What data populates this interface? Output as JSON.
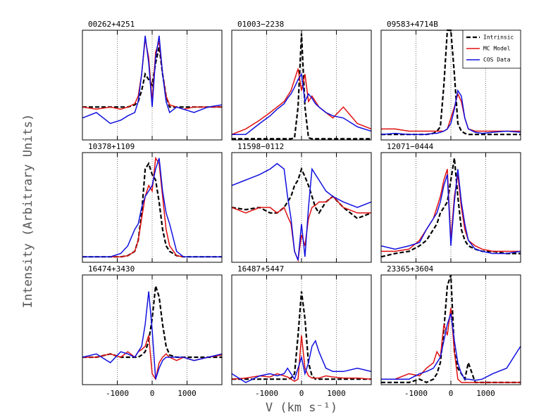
{
  "x_label": "V (km s⁻¹)",
  "y_label": "Intensity (Arbitrary Units)",
  "chart_data": [
    {
      "type": "line",
      "title": "00262+4251",
      "xlim": [
        -2000,
        2000
      ],
      "ylim": [
        0,
        1
      ],
      "xticks": [
        -1000,
        0,
        1000
      ],
      "grid": true,
      "x": [
        -2000,
        -1600,
        -1200,
        -900,
        -700,
        -500,
        -400,
        -300,
        -200,
        -100,
        0,
        100,
        200,
        300,
        400,
        500,
        700,
        900,
        1200,
        1600,
        2000
      ],
      "series": [
        {
          "color": "#000000",
          "dash": true,
          "values": [
            0.3,
            0.3,
            0.3,
            0.3,
            0.3,
            0.32,
            0.35,
            0.45,
            0.6,
            0.55,
            0.5,
            0.7,
            0.85,
            0.6,
            0.4,
            0.3,
            0.3,
            0.3,
            0.3,
            0.3,
            0.3
          ]
        },
        {
          "color": "#e01010",
          "values": [
            0.3,
            0.28,
            0.3,
            0.28,
            0.3,
            0.33,
            0.4,
            0.6,
            0.92,
            0.75,
            0.35,
            0.8,
            0.9,
            0.6,
            0.4,
            0.32,
            0.3,
            0.28,
            0.3,
            0.3,
            0.3
          ]
        },
        {
          "color": "#1010e0",
          "values": [
            0.2,
            0.25,
            0.15,
            0.18,
            0.22,
            0.25,
            0.35,
            0.6,
            0.95,
            0.7,
            0.3,
            0.75,
            0.95,
            0.6,
            0.35,
            0.25,
            0.3,
            0.28,
            0.25,
            0.3,
            0.32
          ]
        }
      ]
    },
    {
      "type": "line",
      "title": "01003−2238",
      "xlim": [
        -2000,
        2000
      ],
      "ylim": [
        0,
        1
      ],
      "xticks": [
        -1000,
        0,
        1000
      ],
      "grid": true,
      "x": [
        -2000,
        -1600,
        -1200,
        -900,
        -700,
        -500,
        -400,
        -300,
        -200,
        -100,
        0,
        100,
        200,
        300,
        400,
        500,
        700,
        900,
        1200,
        1600,
        2000
      ],
      "series": [
        {
          "color": "#000000",
          "dash": true,
          "values": [
            0.01,
            0.01,
            0.01,
            0.01,
            0.01,
            0.01,
            0.01,
            0.01,
            0.02,
            0.3,
            0.97,
            0.3,
            0.02,
            0.01,
            0.01,
            0.01,
            0.01,
            0.01,
            0.01,
            0.01,
            0.01
          ]
        },
        {
          "color": "#e01010",
          "values": [
            0.05,
            0.1,
            0.18,
            0.25,
            0.3,
            0.35,
            0.4,
            0.45,
            0.55,
            0.65,
            0.45,
            0.6,
            0.35,
            0.4,
            0.35,
            0.3,
            0.25,
            0.2,
            0.3,
            0.15,
            0.1
          ]
        },
        {
          "color": "#1010e0",
          "values": [
            0.05,
            0.05,
            0.15,
            0.22,
            0.28,
            0.33,
            0.38,
            0.42,
            0.48,
            0.55,
            0.6,
            0.35,
            0.42,
            0.38,
            0.33,
            0.3,
            0.25,
            0.22,
            0.2,
            0.12,
            0.08
          ]
        }
      ]
    },
    {
      "type": "line",
      "title": "09583+4714B",
      "xlim": [
        -2000,
        2000
      ],
      "ylim": [
        0,
        1
      ],
      "xticks": [
        -1000,
        0,
        1000
      ],
      "grid": true,
      "legend": "upper right",
      "x": [
        -2000,
        -1600,
        -1200,
        -900,
        -700,
        -500,
        -400,
        -300,
        -200,
        -100,
        0,
        100,
        200,
        300,
        400,
        500,
        700,
        900,
        1200,
        1600,
        2000
      ],
      "series": [
        {
          "name": "Intrinsic",
          "color": "#000000",
          "dash": true,
          "values": [
            0.05,
            0.05,
            0.05,
            0.05,
            0.05,
            0.06,
            0.08,
            0.12,
            0.5,
            1.0,
            1.0,
            0.6,
            0.15,
            0.08,
            0.06,
            0.05,
            0.05,
            0.05,
            0.05,
            0.05,
            0.05
          ]
        },
        {
          "name": "MC Model",
          "color": "#e01010",
          "values": [
            0.1,
            0.1,
            0.08,
            0.08,
            0.08,
            0.08,
            0.08,
            0.08,
            0.08,
            0.1,
            0.2,
            0.3,
            0.42,
            0.35,
            0.2,
            0.1,
            0.08,
            0.08,
            0.08,
            0.08,
            0.08
          ]
        },
        {
          "name": "COS Data",
          "color": "#1010e0",
          "values": [
            0.05,
            0.06,
            0.05,
            0.05,
            0.05,
            0.06,
            0.06,
            0.07,
            0.08,
            0.1,
            0.15,
            0.28,
            0.45,
            0.4,
            0.2,
            0.1,
            0.07,
            0.06,
            0.07,
            0.08,
            0.07
          ]
        }
      ]
    },
    {
      "type": "line",
      "title": "10378+1109",
      "xlim": [
        -2000,
        2000
      ],
      "ylim": [
        0,
        1
      ],
      "xticks": [
        -1000,
        0,
        1000
      ],
      "grid": true,
      "x": [
        -2000,
        -1600,
        -1200,
        -900,
        -700,
        -500,
        -400,
        -300,
        -200,
        -100,
        0,
        100,
        200,
        300,
        400,
        500,
        700,
        900,
        1200,
        1600,
        2000
      ],
      "series": [
        {
          "color": "#000000",
          "dash": true,
          "values": [
            0.05,
            0.05,
            0.05,
            0.05,
            0.06,
            0.1,
            0.2,
            0.45,
            0.85,
            0.9,
            0.8,
            0.75,
            0.55,
            0.3,
            0.15,
            0.1,
            0.06,
            0.05,
            0.05,
            0.05,
            0.05
          ]
        },
        {
          "color": "#e01010",
          "values": [
            0.05,
            0.05,
            0.05,
            0.05,
            0.06,
            0.1,
            0.2,
            0.4,
            0.6,
            0.7,
            0.65,
            0.95,
            0.9,
            0.6,
            0.3,
            0.15,
            0.06,
            0.05,
            0.05,
            0.05,
            0.05
          ]
        },
        {
          "color": "#1010e0",
          "values": [
            0.05,
            0.05,
            0.05,
            0.08,
            0.15,
            0.3,
            0.35,
            0.5,
            0.6,
            0.65,
            0.7,
            0.85,
            0.95,
            0.65,
            0.45,
            0.35,
            0.1,
            0.05,
            0.05,
            0.05,
            0.05
          ]
        }
      ]
    },
    {
      "type": "line",
      "title": "11598−0112",
      "xlim": [
        -2000,
        2000
      ],
      "ylim": [
        0,
        1
      ],
      "xticks": [
        -1000,
        0,
        1000
      ],
      "grid": true,
      "x": [
        -2000,
        -1600,
        -1200,
        -900,
        -700,
        -500,
        -400,
        -300,
        -200,
        -100,
        0,
        100,
        200,
        300,
        400,
        500,
        700,
        900,
        1200,
        1600,
        2000
      ],
      "series": [
        {
          "color": "#000000",
          "dash": true,
          "values": [
            0.5,
            0.48,
            0.5,
            0.45,
            0.45,
            0.5,
            0.55,
            0.6,
            0.7,
            0.75,
            0.85,
            0.78,
            0.7,
            0.6,
            0.5,
            0.45,
            0.55,
            0.6,
            0.5,
            0.4,
            0.45
          ]
        },
        {
          "color": "#e01010",
          "values": [
            0.5,
            0.45,
            0.5,
            0.5,
            0.45,
            0.5,
            0.42,
            0.35,
            0.1,
            0.02,
            0.25,
            0.15,
            0.4,
            0.5,
            0.52,
            0.55,
            0.55,
            0.6,
            0.5,
            0.45,
            0.45
          ]
        },
        {
          "color": "#1010e0",
          "values": [
            0.7,
            0.75,
            0.8,
            0.85,
            0.9,
            0.85,
            0.6,
            0.4,
            0.1,
            0.02,
            0.35,
            0.05,
            0.5,
            0.85,
            0.8,
            0.75,
            0.65,
            0.6,
            0.55,
            0.5,
            0.55
          ]
        }
      ]
    },
    {
      "type": "line",
      "title": "12071−0444",
      "xlim": [
        -2000,
        2000
      ],
      "ylim": [
        0,
        1
      ],
      "xticks": [
        -1000,
        0,
        1000
      ],
      "grid": true,
      "x": [
        -2000,
        -1600,
        -1200,
        -900,
        -700,
        -500,
        -400,
        -300,
        -200,
        -100,
        0,
        100,
        200,
        300,
        400,
        500,
        700,
        900,
        1200,
        1600,
        2000
      ],
      "series": [
        {
          "color": "#000000",
          "dash": true,
          "values": [
            0.05,
            0.08,
            0.1,
            0.15,
            0.2,
            0.3,
            0.35,
            0.45,
            0.5,
            0.55,
            0.75,
            0.95,
            0.6,
            0.3,
            0.2,
            0.15,
            0.12,
            0.1,
            0.1,
            0.08,
            0.08
          ]
        },
        {
          "color": "#e01010",
          "values": [
            0.1,
            0.1,
            0.12,
            0.2,
            0.3,
            0.4,
            0.5,
            0.6,
            0.75,
            0.85,
            0.2,
            0.6,
            0.8,
            0.5,
            0.3,
            0.2,
            0.15,
            0.12,
            0.1,
            0.1,
            0.1
          ]
        },
        {
          "color": "#1010e0",
          "values": [
            0.15,
            0.12,
            0.15,
            0.18,
            0.3,
            0.4,
            0.45,
            0.55,
            0.7,
            0.8,
            0.15,
            0.55,
            0.85,
            0.55,
            0.35,
            0.2,
            0.12,
            0.1,
            0.08,
            0.08,
            0.1
          ]
        }
      ]
    },
    {
      "type": "line",
      "title": "16474+3430",
      "xlim": [
        -2000,
        2000
      ],
      "ylim": [
        0,
        1
      ],
      "xticks": [
        -1000,
        0,
        1000
      ],
      "grid": true,
      "x": [
        -2000,
        -1600,
        -1200,
        -900,
        -700,
        -500,
        -400,
        -300,
        -200,
        -100,
        0,
        100,
        200,
        300,
        400,
        500,
        700,
        900,
        1200,
        1600,
        2000
      ],
      "series": [
        {
          "color": "#000000",
          "dash": true,
          "values": [
            0.25,
            0.25,
            0.28,
            0.25,
            0.25,
            0.25,
            0.25,
            0.27,
            0.3,
            0.4,
            0.6,
            0.9,
            0.8,
            0.55,
            0.35,
            0.27,
            0.25,
            0.25,
            0.25,
            0.25,
            0.25
          ]
        },
        {
          "color": "#e01010",
          "values": [
            0.25,
            0.25,
            0.28,
            0.25,
            0.3,
            0.25,
            0.3,
            0.32,
            0.35,
            0.45,
            0.1,
            0.05,
            0.2,
            0.25,
            0.28,
            0.25,
            0.22,
            0.25,
            0.22,
            0.25,
            0.27
          ]
        },
        {
          "color": "#1010e0",
          "values": [
            0.25,
            0.28,
            0.2,
            0.3,
            0.28,
            0.25,
            0.3,
            0.35,
            0.55,
            0.85,
            0.5,
            0.05,
            0.15,
            0.22,
            0.25,
            0.25,
            0.25,
            0.25,
            0.22,
            0.25,
            0.28
          ]
        }
      ]
    },
    {
      "type": "line",
      "title": "16487+5447",
      "xlim": [
        -2000,
        2000
      ],
      "ylim": [
        0,
        1
      ],
      "xticks": [
        -1000,
        0,
        1000
      ],
      "grid": true,
      "x": [
        -2000,
        -1600,
        -1200,
        -900,
        -700,
        -500,
        -400,
        -300,
        -200,
        -100,
        0,
        100,
        200,
        300,
        400,
        500,
        700,
        900,
        1200,
        1600,
        2000
      ],
      "series": [
        {
          "color": "#000000",
          "dash": true,
          "values": [
            0.05,
            0.05,
            0.05,
            0.05,
            0.05,
            0.05,
            0.05,
            0.06,
            0.1,
            0.45,
            0.85,
            0.6,
            0.2,
            0.08,
            0.05,
            0.05,
            0.05,
            0.05,
            0.05,
            0.05,
            0.05
          ]
        },
        {
          "color": "#e01010",
          "values": [
            0.05,
            0.06,
            0.08,
            0.07,
            0.1,
            0.08,
            0.07,
            0.05,
            0.03,
            0.05,
            0.45,
            0.15,
            0.08,
            0.06,
            0.06,
            0.06,
            0.08,
            0.07,
            0.06,
            0.06,
            0.05
          ]
        },
        {
          "color": "#1010e0",
          "values": [
            0.1,
            0.02,
            0.08,
            0.1,
            0.08,
            0.1,
            0.15,
            0.1,
            0.05,
            0.15,
            0.25,
            0.1,
            0.2,
            0.35,
            0.4,
            0.3,
            0.15,
            0.12,
            0.12,
            0.15,
            0.12
          ]
        }
      ]
    },
    {
      "type": "line",
      "title": "23365+3604",
      "xlim": [
        -2000,
        2000
      ],
      "ylim": [
        0,
        1
      ],
      "xticks": [
        -1000,
        0,
        1000
      ],
      "grid": true,
      "x": [
        -2000,
        -1600,
        -1200,
        -900,
        -700,
        -500,
        -400,
        -300,
        -200,
        -100,
        0,
        100,
        200,
        300,
        400,
        500,
        700,
        900,
        1200,
        1600,
        2000
      ],
      "series": [
        {
          "color": "#000000",
          "dash": true,
          "values": [
            0.02,
            0.02,
            0.02,
            0.05,
            0.02,
            0.05,
            0.1,
            0.2,
            0.5,
            0.9,
            1.0,
            0.3,
            0.15,
            0.1,
            0.05,
            0.2,
            0.02,
            0.02,
            0.02,
            0.02,
            0.02
          ]
        },
        {
          "color": "#e01010",
          "values": [
            0.05,
            0.05,
            0.1,
            0.08,
            0.15,
            0.2,
            0.3,
            0.25,
            0.55,
            0.45,
            0.7,
            0.3,
            0.05,
            0.02,
            0.02,
            0.02,
            0.02,
            0.02,
            0.02,
            0.02,
            0.02
          ]
        },
        {
          "color": "#1010e0",
          "values": [
            0.05,
            0.05,
            0.05,
            0.1,
            0.12,
            0.15,
            0.2,
            0.25,
            0.4,
            0.55,
            0.65,
            0.4,
            0.2,
            0.1,
            0.05,
            0.05,
            0.04,
            0.05,
            0.1,
            0.15,
            0.35
          ]
        }
      ]
    }
  ]
}
